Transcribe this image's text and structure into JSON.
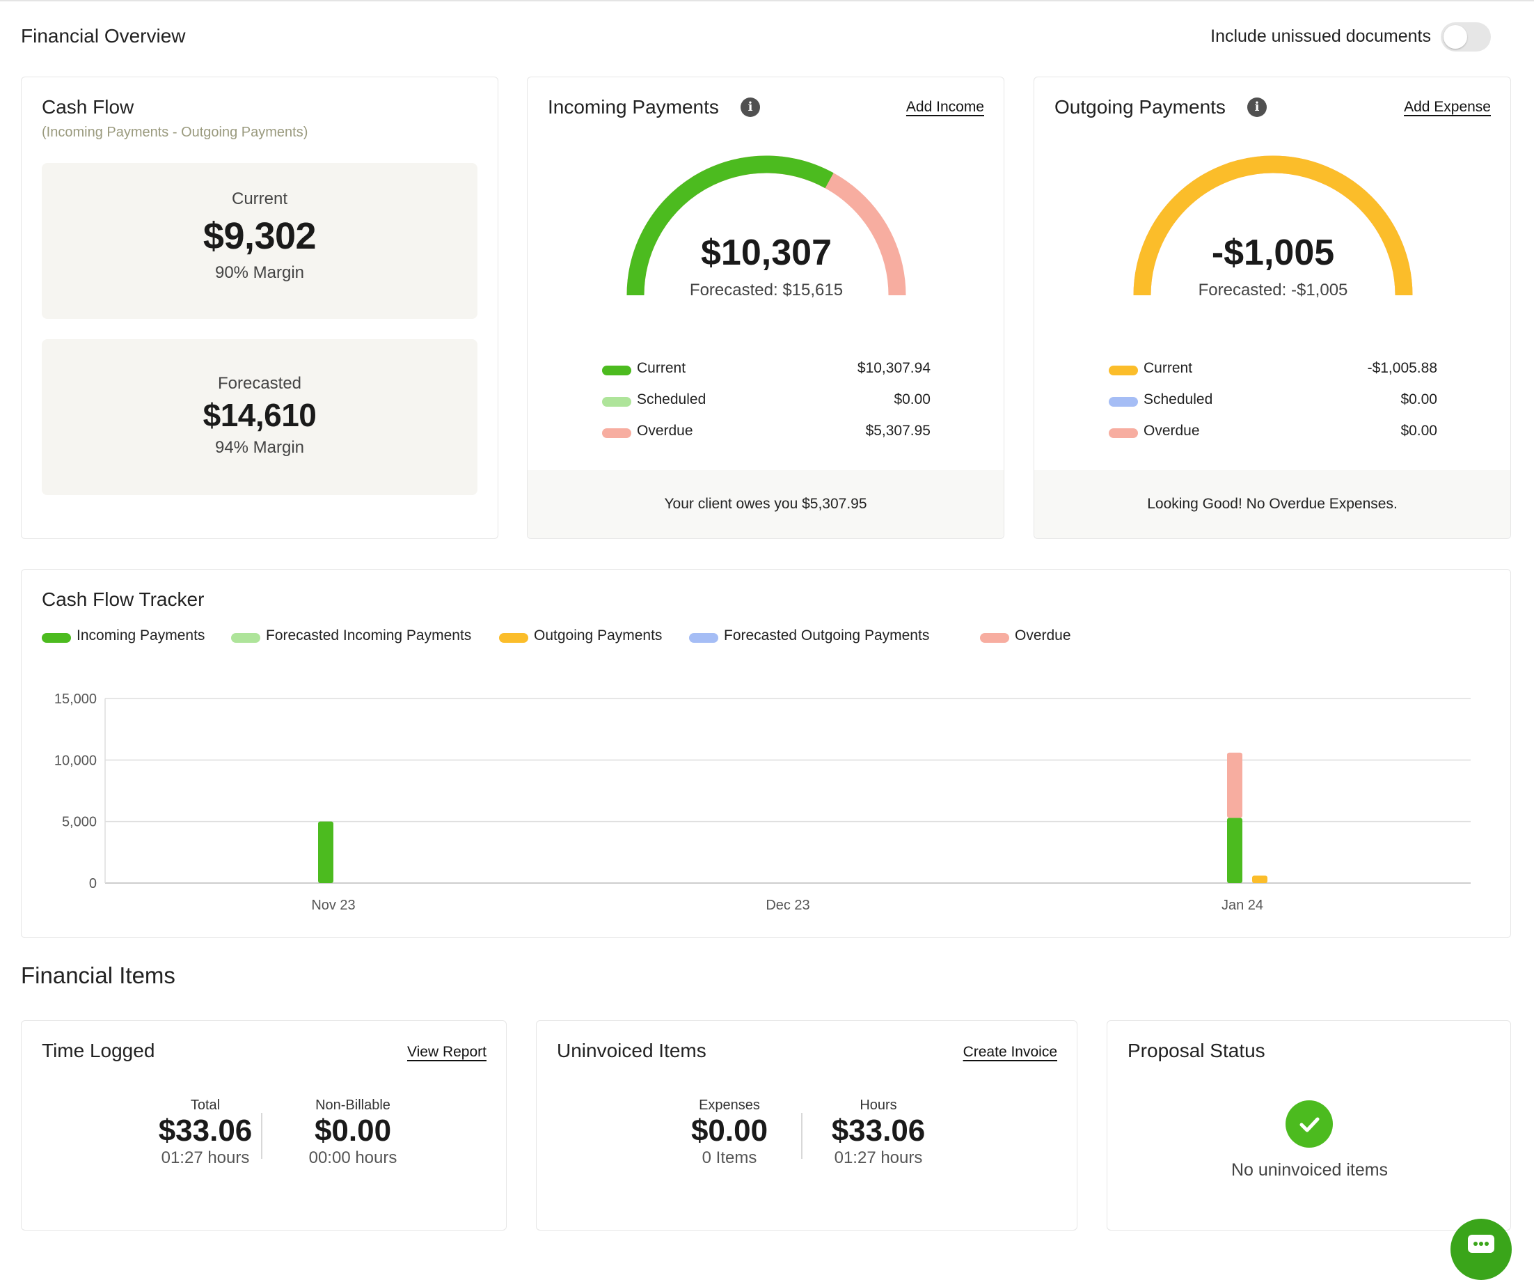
{
  "header": {
    "title": "Financial Overview",
    "toggle_label": "Include unissued documents",
    "toggle_on": false
  },
  "cash_flow": {
    "title": "Cash Flow",
    "subtitle": "(Incoming Payments - Outgoing Payments)",
    "current": {
      "label": "Current",
      "amount": "$9,302",
      "margin": "90% Margin"
    },
    "forecasted": {
      "label": "Forecasted",
      "amount": "$14,610",
      "margin": "94% Margin"
    }
  },
  "incoming": {
    "title": "Incoming Payments",
    "action": "Add Income",
    "amount": "$10,307",
    "forecast": "Forecasted: $15,615",
    "gauge_fraction_current": 0.66,
    "legend": [
      {
        "label": "Current",
        "value": "$10,307.94",
        "color": "#4cbb1f"
      },
      {
        "label": "Scheduled",
        "value": "$0.00",
        "color": "#aee49a"
      },
      {
        "label": "Overdue",
        "value": "$5,307.95",
        "color": "#f7ada0"
      }
    ],
    "footer": "Your client owes you $5,307.95"
  },
  "outgoing": {
    "title": "Outgoing Payments",
    "action": "Add Expense",
    "amount": "-$1,005",
    "forecast": "Forecasted: -$1,005",
    "gauge_fraction_current": 1.0,
    "legend": [
      {
        "label": "Current",
        "value": "-$1,005.88",
        "color": "#fbbd2a"
      },
      {
        "label": "Scheduled",
        "value": "$0.00",
        "color": "#a5bdf5"
      },
      {
        "label": "Overdue",
        "value": "$0.00",
        "color": "#f7ada0"
      }
    ],
    "footer": "Looking Good! No Overdue Expenses."
  },
  "tracker": {
    "title": "Cash Flow Tracker",
    "legend": [
      {
        "label": "Incoming Payments",
        "color": "#4cbb1f"
      },
      {
        "label": "Forecasted Incoming Payments",
        "color": "#aee49a"
      },
      {
        "label": "Outgoing Payments",
        "color": "#fbbd2a"
      },
      {
        "label": "Forecasted Outgoing Payments",
        "color": "#a5bdf5"
      },
      {
        "label": "Overdue",
        "color": "#f7ada0"
      }
    ]
  },
  "chart_data": {
    "type": "bar",
    "categories": [
      "Nov 23",
      "Dec 23",
      "Jan 24"
    ],
    "ylim": [
      0,
      15000
    ],
    "yticks": [
      "15,000",
      "10,000",
      "5,000",
      "0"
    ],
    "ytick_values": [
      15000,
      10000,
      5000,
      0
    ],
    "grid": true,
    "series": [
      {
        "name": "Incoming Payments",
        "color": "#4cbb1f",
        "values": [
          5000,
          0,
          5300
        ],
        "stack": "in"
      },
      {
        "name": "Overdue",
        "color": "#f7ada0",
        "values": [
          0,
          0,
          5300
        ],
        "stack": "in"
      },
      {
        "name": "Outgoing Payments",
        "color": "#fbbd2a",
        "values": [
          0,
          0,
          600
        ],
        "stack": "out"
      }
    ]
  },
  "financial_items": {
    "title": "Financial Items",
    "time_logged": {
      "title": "Time Logged",
      "action": "View Report",
      "stats": [
        {
          "label": "Total",
          "value": "$33.06",
          "sub": "01:27 hours"
        },
        {
          "label": "Non-Billable",
          "value": "$0.00",
          "sub": "00:00 hours"
        }
      ]
    },
    "uninvoiced": {
      "title": "Uninvoiced Items",
      "action": "Create Invoice",
      "stats": [
        {
          "label": "Expenses",
          "value": "$0.00",
          "sub": "0 Items"
        },
        {
          "label": "Hours",
          "value": "$33.06",
          "sub": "01:27 hours"
        }
      ]
    },
    "proposal": {
      "title": "Proposal Status",
      "message": "No uninvoiced items",
      "icon": "check-circle-icon"
    }
  },
  "chat": {
    "icon": "chat-icon"
  }
}
